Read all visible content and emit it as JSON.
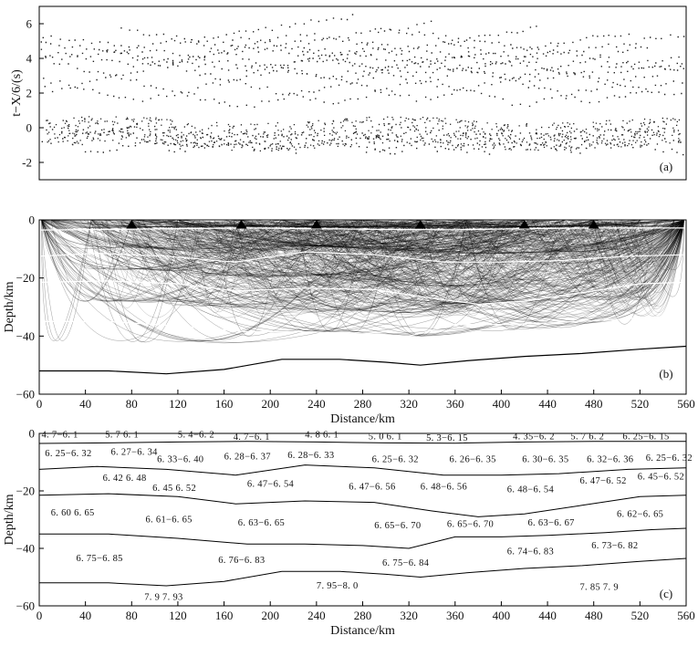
{
  "figure": {
    "panel_a_label": "(a)",
    "panel_b_label": "(b)",
    "panel_c_label": "(c)"
  },
  "chart_data": [
    {
      "type": "scatter",
      "panel": "(a)",
      "ylabel": "t−X/6/(s)",
      "xlim": [
        0,
        560
      ],
      "ylim": [
        -3,
        7
      ],
      "yticks": [
        -2,
        0,
        2,
        4,
        6
      ],
      "grid": false,
      "description_of_marks": "travel-time picks, reduced at 6 km/s",
      "shots": [
        {
          "x": 15,
          "t": [
            -0.1,
            2.2,
            4.0
          ]
        },
        {
          "x": 85,
          "t": [
            -0.2,
            1.5,
            3.6
          ]
        },
        {
          "x": 175,
          "t": [
            -0.3,
            1.2,
            3.3
          ]
        },
        {
          "x": 250,
          "t": [
            -0.3,
            1.4,
            3.0
          ]
        },
        {
          "x": 330,
          "t": [
            -0.2,
            1.6,
            3.2
          ]
        },
        {
          "x": 420,
          "t": [
            -0.3,
            1.3,
            2.8
          ]
        },
        {
          "x": 480,
          "t": [
            -0.2,
            1.5,
            3.0
          ]
        },
        {
          "x": 545,
          "t": [
            -0.1,
            1.8,
            3.4
          ]
        }
      ]
    },
    {
      "type": "line",
      "panel": "(b)",
      "xlabel": "Distance/km",
      "ylabel": "Depth/km",
      "xlim": [
        0,
        560
      ],
      "ylim": [
        -60,
        0
      ],
      "xticks": [
        0,
        40,
        80,
        120,
        160,
        200,
        240,
        280,
        320,
        360,
        400,
        440,
        480,
        520,
        560
      ],
      "yticks": [
        0,
        -20,
        -40,
        -60
      ],
      "description_of_marks": "ray paths traced through the layered model",
      "shot_points_km": [
        80,
        175,
        240,
        330,
        420,
        480
      ]
    },
    {
      "type": "line",
      "panel": "(c)",
      "xlabel": "Distance/km",
      "ylabel": "Depth/km",
      "xlim": [
        0,
        560
      ],
      "ylim": [
        -60,
        0
      ],
      "xticks": [
        0,
        40,
        80,
        120,
        160,
        200,
        240,
        280,
        320,
        360,
        400,
        440,
        480,
        520,
        560
      ],
      "yticks": [
        0,
        -20,
        -40,
        -60
      ],
      "interfaces": [
        {
          "x": [
            0,
            60,
            120,
            180,
            240,
            300,
            360,
            420,
            480,
            560
          ],
          "depth": [
            -3.5,
            -3.3,
            -3.0,
            -2.8,
            -3.0,
            -3.3,
            -3.4,
            -3.0,
            -2.8,
            -2.8
          ]
        },
        {
          "x": [
            0,
            50,
            110,
            170,
            230,
            290,
            350,
            400,
            450,
            510,
            560
          ],
          "depth": [
            -12.5,
            -11.5,
            -12.5,
            -14.5,
            -11.0,
            -12.0,
            -14.5,
            -14.5,
            -14.0,
            -12.5,
            -12.0
          ]
        },
        {
          "x": [
            0,
            60,
            120,
            170,
            230,
            290,
            340,
            380,
            420,
            470,
            520,
            560
          ],
          "depth": [
            -21.5,
            -21.0,
            -22.0,
            -24.5,
            -23.5,
            -24.0,
            -27.0,
            -29.0,
            -28.0,
            -25.0,
            -22.0,
            -21.5
          ]
        },
        {
          "x": [
            0,
            60,
            120,
            180,
            230,
            280,
            320,
            360,
            400,
            440,
            490,
            530,
            560
          ],
          "depth": [
            -35.0,
            -35.0,
            -36.5,
            -38.5,
            -38.5,
            -39.0,
            -40.0,
            -36.0,
            -36.0,
            -35.5,
            -34.5,
            -33.5,
            -33.0
          ]
        },
        {
          "x": [
            0,
            60,
            110,
            160,
            210,
            260,
            300,
            330,
            370,
            420,
            470,
            520,
            560
          ],
          "depth": [
            -52.0,
            -52.0,
            -53.0,
            -51.5,
            -48.0,
            -48.0,
            -49.0,
            -50.0,
            -48.5,
            -47.0,
            -46.0,
            -44.5,
            -43.5
          ]
        }
      ],
      "velocity_labels": [
        {
          "x": 2,
          "y": -1.5,
          "text": "4. 7−6. 1"
        },
        {
          "x": 57,
          "y": -1.5,
          "text": "5. 7  6. 1"
        },
        {
          "x": 120,
          "y": -1.5,
          "text": "5. 4−6. 2"
        },
        {
          "x": 168,
          "y": -2.2,
          "text": "4. 7−6. 1"
        },
        {
          "x": 230,
          "y": -1.5,
          "text": "4. 8  6. 1"
        },
        {
          "x": 285,
          "y": -2.0,
          "text": "5. 0  6. 1"
        },
        {
          "x": 335,
          "y": -2.5,
          "text": "5. 3−6. 15"
        },
        {
          "x": 410,
          "y": -2.0,
          "text": "4. 35−6. 2"
        },
        {
          "x": 460,
          "y": -2.0,
          "text": "5. 7  6. 2"
        },
        {
          "x": 505,
          "y": -2.0,
          "text": "6. 25−6. 15"
        },
        {
          "x": 5,
          "y": -8.0,
          "text": "6. 25−6. 32"
        },
        {
          "x": 62,
          "y": -7.5,
          "text": "6. 27−6. 34"
        },
        {
          "x": 102,
          "y": -10.0,
          "text": "6. 33−6. 40"
        },
        {
          "x": 160,
          "y": -9.0,
          "text": "6. 28−6. 37"
        },
        {
          "x": 215,
          "y": -8.5,
          "text": "6. 28−6. 33"
        },
        {
          "x": 288,
          "y": -10.0,
          "text": "6. 25−6. 32"
        },
        {
          "x": 355,
          "y": -10.0,
          "text": "6. 26−6. 35"
        },
        {
          "x": 418,
          "y": -10.0,
          "text": "6. 30−6. 35"
        },
        {
          "x": 474,
          "y": -10.0,
          "text": "6. 32−6. 36"
        },
        {
          "x": 525,
          "y": -9.5,
          "text": "6. 25−6. 32"
        },
        {
          "x": 55,
          "y": -16.5,
          "text": "6. 42  6. 48"
        },
        {
          "x": 98,
          "y": -20.0,
          "text": "6. 45  6. 52"
        },
        {
          "x": 180,
          "y": -18.5,
          "text": "6. 47−6. 54"
        },
        {
          "x": 268,
          "y": -19.5,
          "text": "6. 47−6. 56"
        },
        {
          "x": 330,
          "y": -19.5,
          "text": "6. 48−6. 56"
        },
        {
          "x": 405,
          "y": -20.5,
          "text": "6. 48−6. 54"
        },
        {
          "x": 468,
          "y": -17.5,
          "text": "6. 47−6. 52"
        },
        {
          "x": 518,
          "y": -16.0,
          "text": "6. 45−6. 52"
        },
        {
          "x": 10,
          "y": -28.5,
          "text": "6. 60  6. 65"
        },
        {
          "x": 92,
          "y": -31.0,
          "text": "6. 61−6. 65"
        },
        {
          "x": 172,
          "y": -32.0,
          "text": "6. 63−6. 65"
        },
        {
          "x": 290,
          "y": -33.0,
          "text": "6. 65−6. 70"
        },
        {
          "x": 353,
          "y": -32.5,
          "text": "6. 65−6. 70"
        },
        {
          "x": 423,
          "y": -32.0,
          "text": "6. 63−6. 67"
        },
        {
          "x": 500,
          "y": -29.0,
          "text": "6. 62−6. 65"
        },
        {
          "x": 32,
          "y": -44.5,
          "text": "6. 75−6. 85"
        },
        {
          "x": 155,
          "y": -45.0,
          "text": "6. 76−6. 83"
        },
        {
          "x": 297,
          "y": -46.0,
          "text": "6. 75−6. 84"
        },
        {
          "x": 405,
          "y": -42.0,
          "text": "6. 74−6. 83"
        },
        {
          "x": 478,
          "y": -40.0,
          "text": "6. 73−6. 82"
        },
        {
          "x": 240,
          "y": -54.0,
          "text": "7. 95−8. 0"
        },
        {
          "x": 468,
          "y": -54.5,
          "text": "7. 85  7. 9"
        },
        {
          "x": 91,
          "y": -58.0,
          "text": "7. 9  7. 93"
        }
      ]
    }
  ]
}
